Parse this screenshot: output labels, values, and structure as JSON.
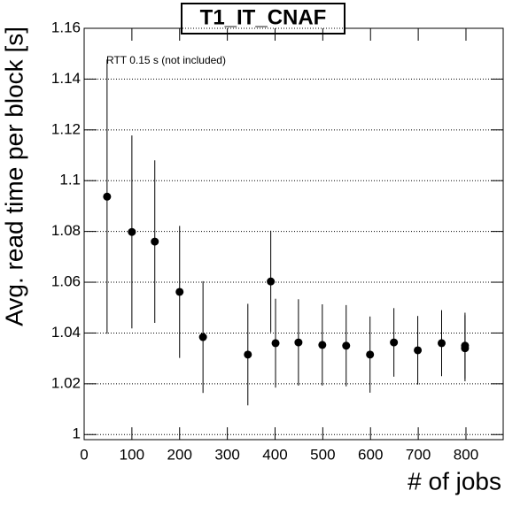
{
  "chart_data": {
    "type": "scatter",
    "title": "T1_IT_CNAF",
    "annotation": "RTT 0.15 s (not included)",
    "xlabel": "# of jobs",
    "ylabel": "Avg. read time per block [s]",
    "x": [
      48,
      100,
      148,
      200,
      249,
      343,
      391,
      401,
      449,
      499,
      549,
      599,
      649,
      699,
      749,
      798,
      798
    ],
    "values": [
      1.0937,
      1.0798,
      1.076,
      1.0562,
      1.0384,
      1.0315,
      1.0603,
      1.036,
      1.0363,
      1.0353,
      1.035,
      1.0315,
      1.0363,
      1.0332,
      1.036,
      1.035,
      1.034
    ],
    "errors": [
      0.054,
      0.038,
      0.032,
      0.026,
      0.022,
      0.02,
      0.02,
      0.0175,
      0.017,
      0.016,
      0.016,
      0.015,
      0.0135,
      0.0135,
      0.013,
      0.013,
      0.013
    ],
    "color": "#000000",
    "xlim": [
      0,
      878
    ],
    "ylim": [
      0.998,
      1.16
    ],
    "xticks": [
      0,
      100,
      200,
      300,
      400,
      500,
      600,
      700,
      800
    ],
    "yticks": [
      1,
      1.02,
      1.04,
      1.06,
      1.08,
      1.1,
      1.12,
      1.14,
      1.16
    ],
    "grid": true
  }
}
